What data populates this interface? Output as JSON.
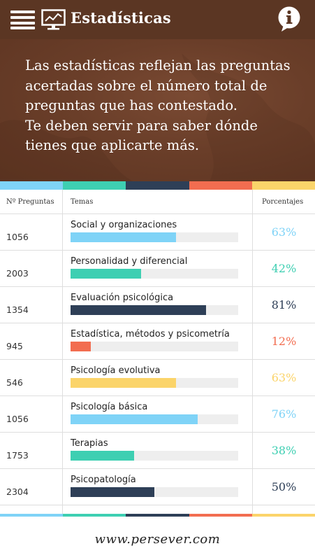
{
  "header": {
    "title": "Estadísticas",
    "menu_icon": "menu-icon",
    "stats_icon": "monitor-chart-icon",
    "info_icon": "info-icon",
    "background": "#5b3623"
  },
  "hero": {
    "line1": "Las estadísticas reflejan las preguntas",
    "line2": "acertadas sobre el número total de",
    "line3": "preguntas que has contestado.",
    "line4": "Te deben servir para saber dónde",
    "line5": "tienes que aplicarte más."
  },
  "palette": {
    "blue": "#7fd3f7",
    "teal": "#3ecfb2",
    "navy": "#2e3f57",
    "coral": "#f26d50",
    "yellow": "#fbd46a"
  },
  "table": {
    "col_count": "Nº Preguntas",
    "col_theme": "Temas",
    "col_pct": "Porcentajes",
    "rows": [
      {
        "count": "1056",
        "theme": "Social y organizaciones",
        "pct": "63%",
        "fraction": 0.63,
        "color": "#7fd3f7"
      },
      {
        "count": "2003",
        "theme": "Personalidad y diferencial",
        "pct": "42%",
        "fraction": 0.42,
        "color": "#3ecfb2"
      },
      {
        "count": "1354",
        "theme": "Evaluación psicológica",
        "pct": "81%",
        "fraction": 0.81,
        "color": "#2e3f57"
      },
      {
        "count": "945",
        "theme": "Estadística, métodos y psicometría",
        "pct": "12%",
        "fraction": 0.12,
        "color": "#f26d50"
      },
      {
        "count": "546",
        "theme": "Psicología evolutiva",
        "pct": "63%",
        "fraction": 0.63,
        "color": "#fbd46a"
      },
      {
        "count": "1056",
        "theme": "Psicología básica",
        "pct": "76%",
        "fraction": 0.76,
        "color": "#7fd3f7"
      },
      {
        "count": "1753",
        "theme": "Terapias",
        "pct": "38%",
        "fraction": 0.38,
        "color": "#3ecfb2"
      },
      {
        "count": "2304",
        "theme": "Psicopatología",
        "pct": "50%",
        "fraction": 0.5,
        "color": "#2e3f57"
      }
    ]
  },
  "footer": {
    "url": "www.persever.com"
  }
}
